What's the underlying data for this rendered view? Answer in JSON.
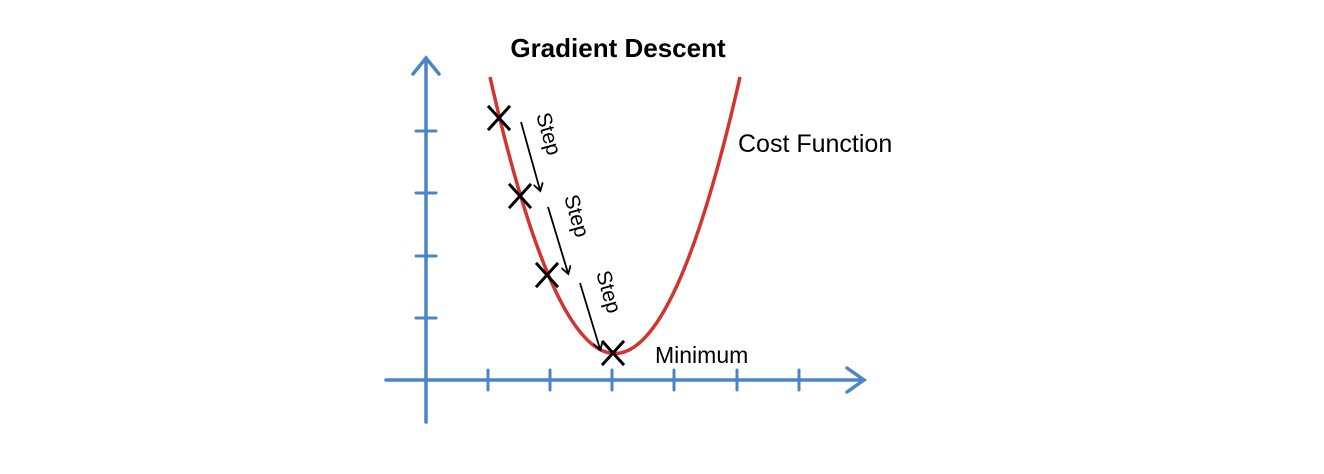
{
  "title": "Gradient Descent",
  "curve_label": "Cost Function",
  "minimum_label": "Minimum",
  "step_labels": [
    "Step",
    "Step",
    "Step"
  ],
  "colors": {
    "axis": "#4a86c5",
    "curve": "#d2352f",
    "marker": "#000000",
    "text": "#000000"
  },
  "icons": {
    "marker": "x-marker-icon",
    "step_arrow": "arrow-down-right-icon"
  }
}
